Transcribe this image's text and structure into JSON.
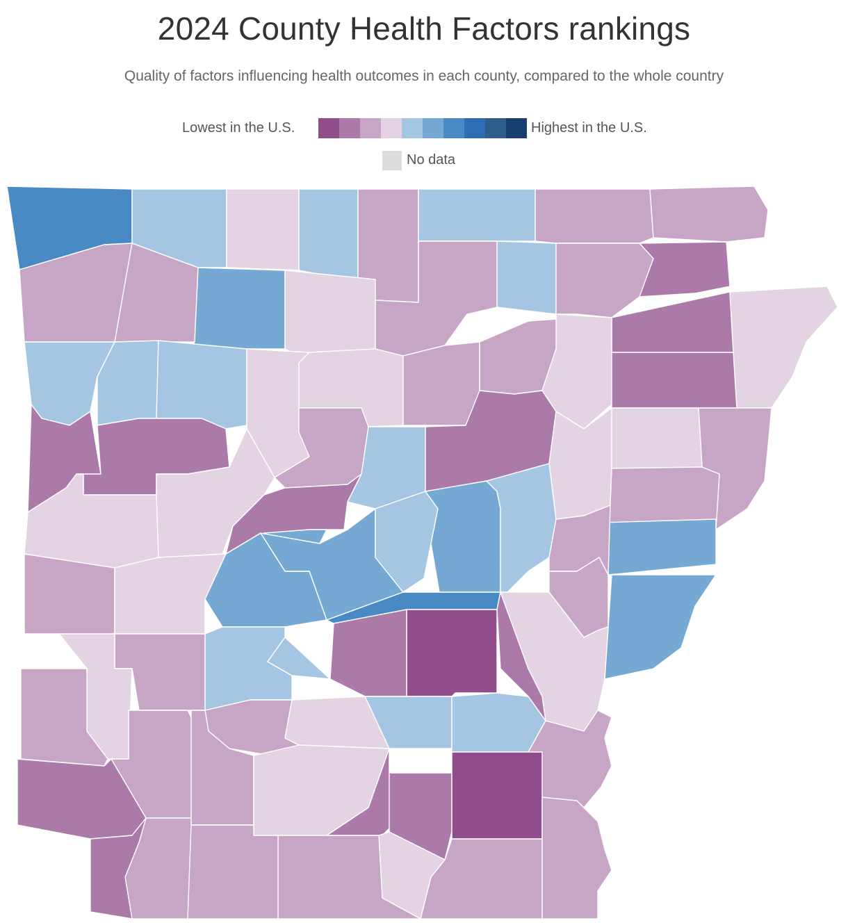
{
  "title": "2024 County Health Factors rankings",
  "subtitle": "Quality of factors influencing health outcomes in each county, compared to the whole country",
  "legend": {
    "low_label": "Lowest in the U.S.",
    "high_label": "Highest in the U.S.",
    "scale_colors": [
      "#904d8b",
      "#ab7aa8",
      "#c6a5c5",
      "#e4d3e3",
      "#a5c6e2",
      "#76a8d4",
      "#4a8ac4",
      "#2e6db4",
      "#2e5f8a",
      "#173e6c"
    ],
    "no_data_label": "No data",
    "no_data_color": "#dddddd"
  },
  "map": {
    "region": "Arkansas",
    "border_color": "#ffffff",
    "county_levels": [
      7,
      5,
      4,
      5,
      3,
      5,
      3,
      3,
      2,
      3,
      3,
      6,
      4,
      3,
      5,
      3,
      2,
      4,
      5,
      2,
      5,
      5,
      4,
      4,
      3,
      3,
      4,
      2,
      3,
      4,
      2,
      3,
      5,
      2,
      4,
      3,
      4,
      2,
      4,
      6,
      6,
      5,
      6,
      6,
      6,
      5,
      3,
      3,
      3,
      4,
      6,
      7,
      4,
      2,
      1,
      2,
      5,
      5,
      3,
      4,
      3,
      3,
      4,
      5,
      5,
      3,
      3,
      2,
      3,
      4,
      2,
      2,
      1,
      3,
      3,
      4,
      3,
      3,
      3,
      2,
      3,
      4,
      1,
      3,
      3,
      3,
      4,
      3,
      4,
      5,
      6,
      3,
      3,
      3,
      3,
      3,
      3,
      4,
      4,
      3,
      5,
      4,
      4,
      4,
      3,
      3,
      3,
      3,
      4,
      4,
      6,
      3,
      2,
      2,
      2
    ]
  }
}
